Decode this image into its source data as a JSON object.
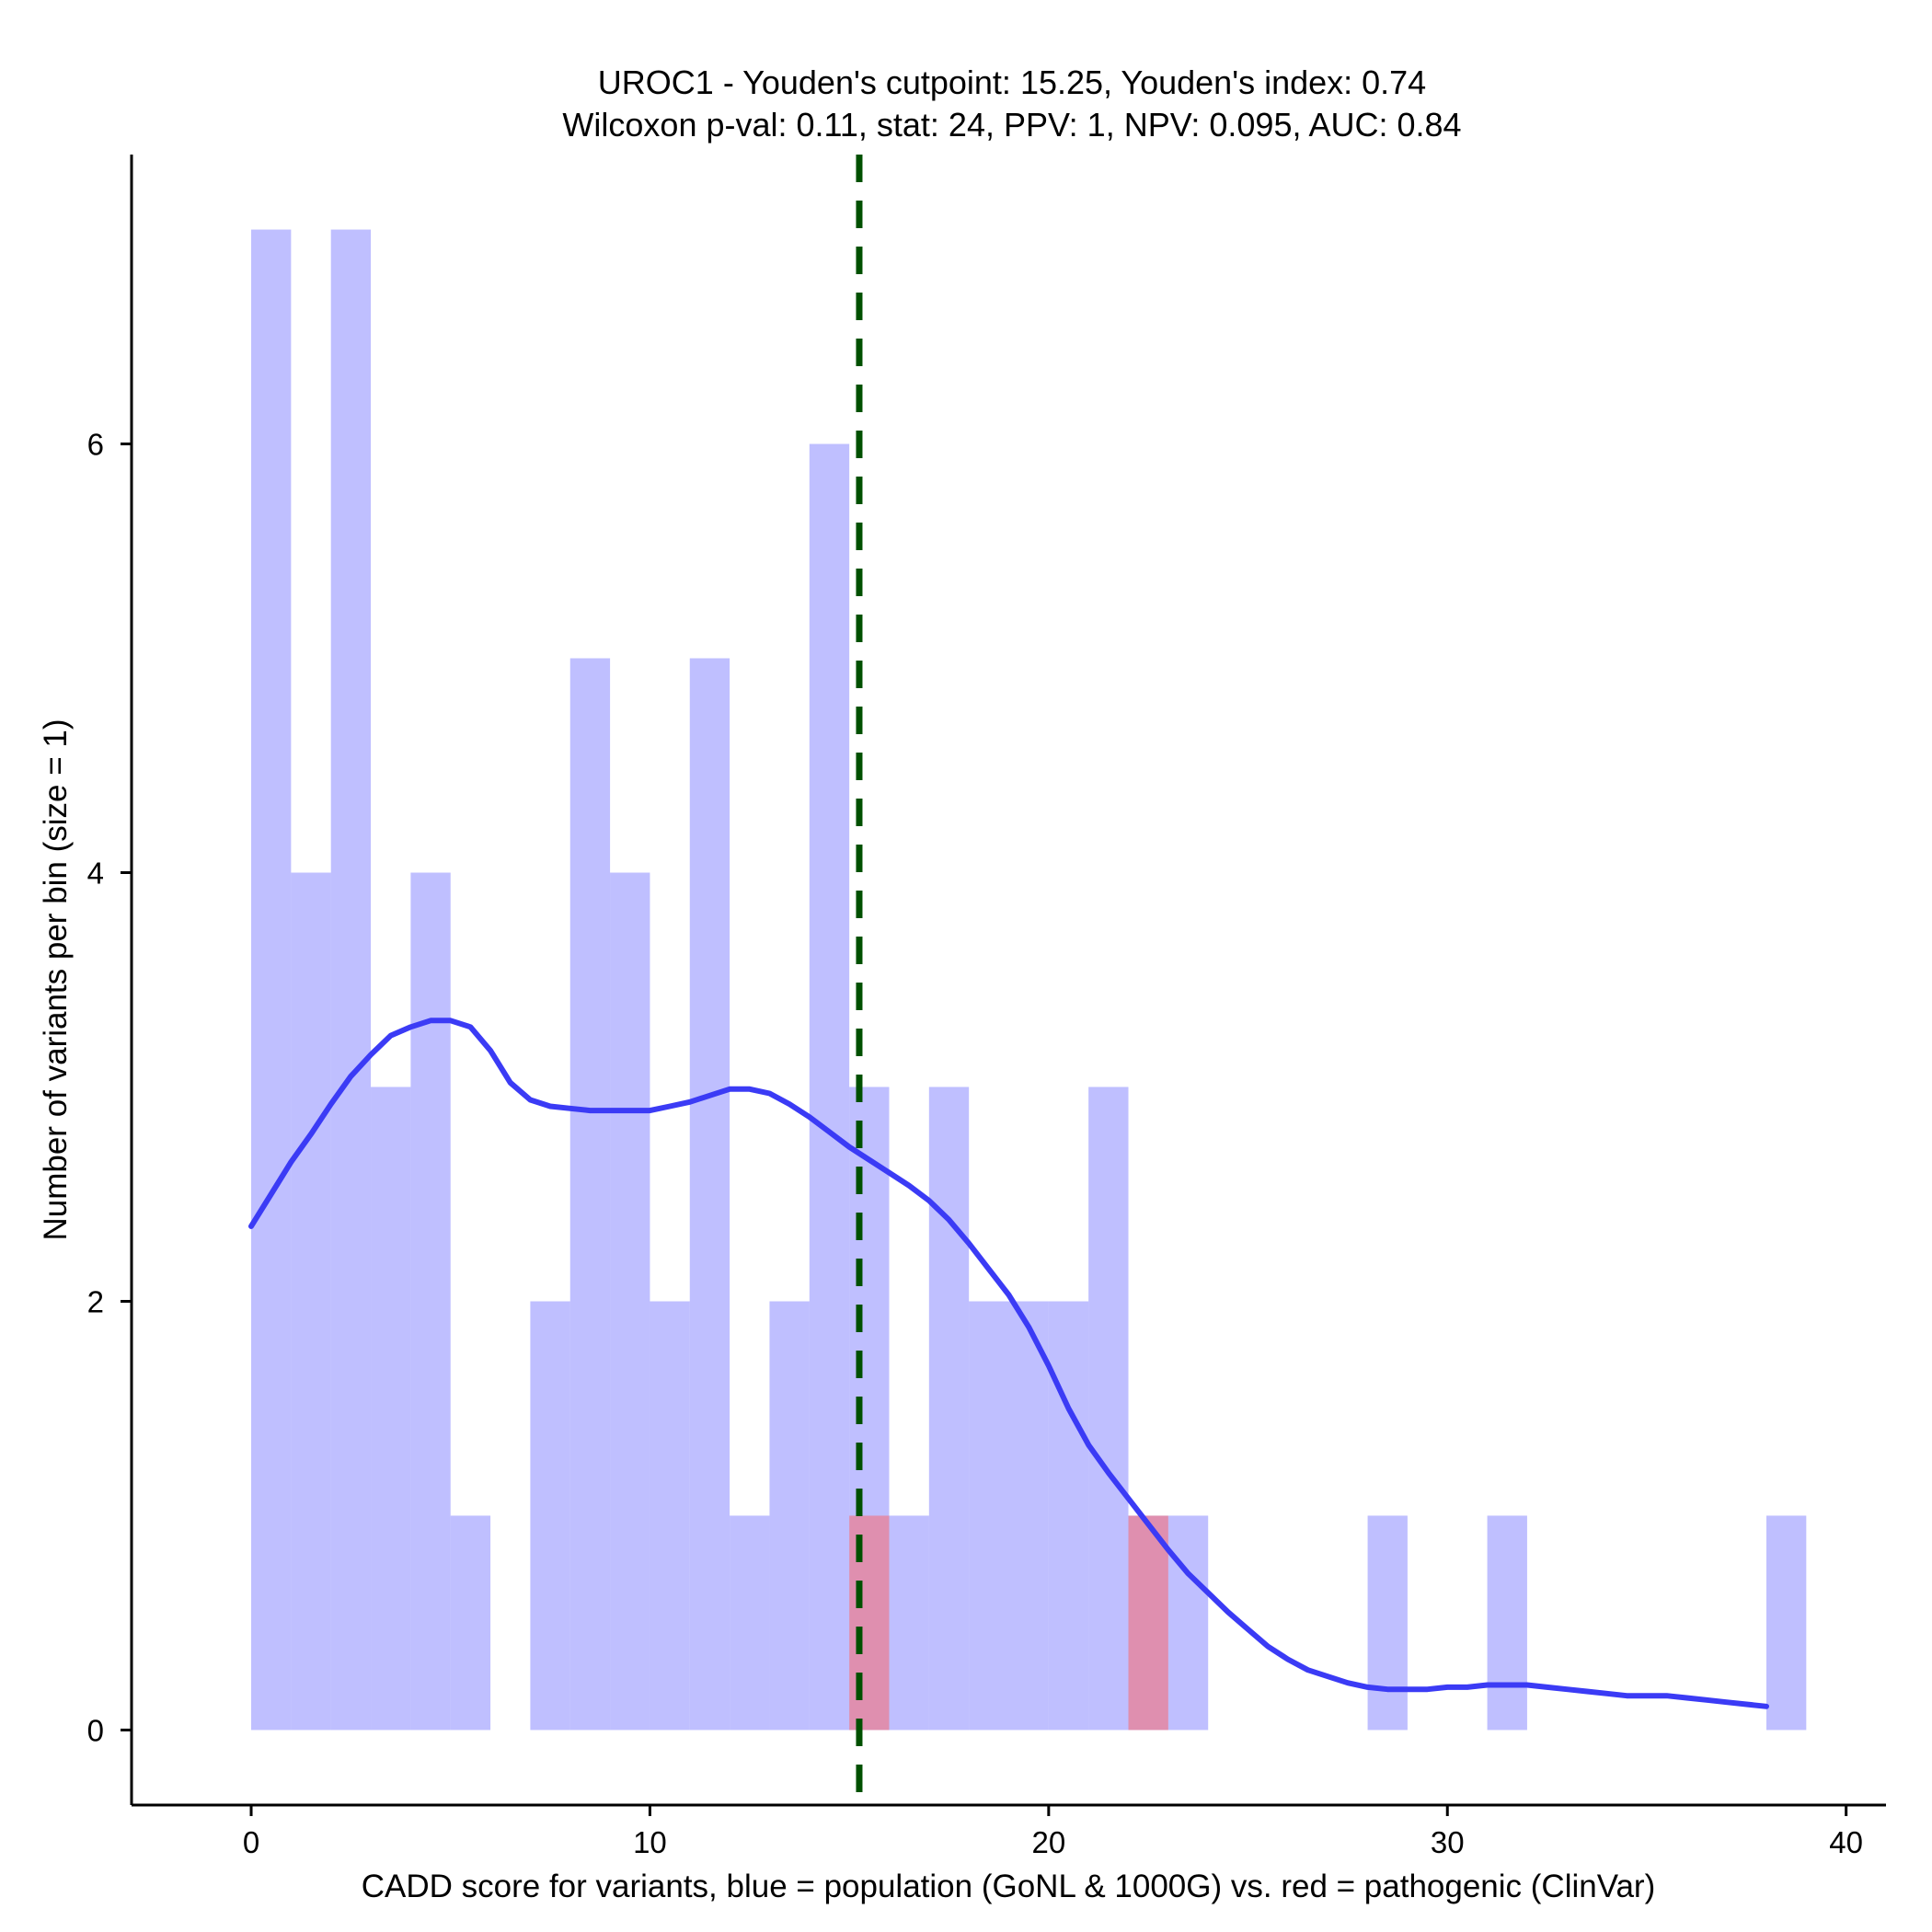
{
  "chart_data": {
    "type": "bar",
    "title_line1": "UROC1 - Youden's cutpoint: 15.25, Youden's index: 0.74",
    "title_line2": "Wilcoxon p-val: 0.11, stat: 24, PPV: 1, NPV: 0.095, AUC: 0.84",
    "xlabel": "CADD score for variants, blue = population (GoNL & 1000G) vs. red = pathogenic (ClinVar)",
    "ylabel": "Number of variants per bin (size = 1)",
    "xlim": [
      -3,
      41
    ],
    "ylim": [
      -0.35,
      7.35
    ],
    "xticks": [
      0,
      10,
      20,
      30,
      40
    ],
    "yticks": [
      0,
      2,
      4,
      6
    ],
    "bin_width": 1,
    "cutpoint": 15.25,
    "colors": {
      "population": "#8080ff",
      "pathogenic": "#ff6060",
      "density": "#3b3bf5",
      "cutpoint": "#005000"
    },
    "series": [
      {
        "name": "population (GoNL & 1000G)",
        "bins": [
          {
            "x0": 0,
            "count": 7
          },
          {
            "x0": 1,
            "count": 4
          },
          {
            "x0": 2,
            "count": 7
          },
          {
            "x0": 3,
            "count": 3
          },
          {
            "x0": 4,
            "count": 4
          },
          {
            "x0": 5,
            "count": 1
          },
          {
            "x0": 7,
            "count": 2
          },
          {
            "x0": 8,
            "count": 5
          },
          {
            "x0": 9,
            "count": 4
          },
          {
            "x0": 10,
            "count": 2
          },
          {
            "x0": 11,
            "count": 5
          },
          {
            "x0": 12,
            "count": 1
          },
          {
            "x0": 13,
            "count": 2
          },
          {
            "x0": 14,
            "count": 6
          },
          {
            "x0": 15,
            "count": 3
          },
          {
            "x0": 16,
            "count": 1
          },
          {
            "x0": 17,
            "count": 3
          },
          {
            "x0": 18,
            "count": 2
          },
          {
            "x0": 19,
            "count": 2
          },
          {
            "x0": 20,
            "count": 2
          },
          {
            "x0": 21,
            "count": 3
          },
          {
            "x0": 22,
            "count": 1
          },
          {
            "x0": 23,
            "count": 1
          },
          {
            "x0": 28,
            "count": 1
          },
          {
            "x0": 31,
            "count": 1
          },
          {
            "x0": 38,
            "count": 1
          }
        ]
      },
      {
        "name": "pathogenic (ClinVar)",
        "bins": [
          {
            "x0": 15,
            "count": 1
          },
          {
            "x0": 22,
            "count": 1
          }
        ]
      }
    ],
    "density_curve": {
      "name": "population density (scaled)",
      "x": [
        0,
        0.5,
        1,
        1.5,
        2,
        2.5,
        3,
        3.5,
        4,
        4.5,
        5,
        5.5,
        6,
        6.5,
        7,
        7.5,
        8,
        8.5,
        9,
        9.5,
        10,
        10.5,
        11,
        11.5,
        12,
        12.5,
        13,
        13.5,
        14,
        14.5,
        15,
        15.5,
        16,
        16.5,
        17,
        17.5,
        18,
        18.5,
        19,
        19.5,
        20,
        20.5,
        21,
        21.5,
        22,
        22.5,
        23,
        23.5,
        24,
        24.5,
        25,
        25.5,
        26,
        26.5,
        27,
        27.5,
        28,
        28.5,
        29,
        29.5,
        30,
        30.5,
        31,
        31.5,
        32,
        32.5,
        33,
        33.5,
        34,
        34.5,
        35,
        35.5,
        36,
        36.5,
        37,
        37.5,
        38
      ],
      "y": [
        2.35,
        2.5,
        2.65,
        2.78,
        2.92,
        3.05,
        3.15,
        3.24,
        3.28,
        3.31,
        3.31,
        3.28,
        3.17,
        3.02,
        2.94,
        2.91,
        2.9,
        2.89,
        2.89,
        2.89,
        2.89,
        2.91,
        2.93,
        2.96,
        2.99,
        2.99,
        2.97,
        2.92,
        2.86,
        2.79,
        2.72,
        2.66,
        2.6,
        2.54,
        2.47,
        2.38,
        2.27,
        2.15,
        2.03,
        1.88,
        1.7,
        1.5,
        1.33,
        1.2,
        1.08,
        0.96,
        0.84,
        0.73,
        0.64,
        0.55,
        0.47,
        0.39,
        0.33,
        0.28,
        0.25,
        0.22,
        0.2,
        0.19,
        0.19,
        0.19,
        0.2,
        0.2,
        0.21,
        0.21,
        0.21,
        0.2,
        0.19,
        0.18,
        0.17,
        0.16,
        0.16,
        0.16,
        0.15,
        0.14,
        0.13,
        0.12,
        0.11
      ]
    }
  }
}
